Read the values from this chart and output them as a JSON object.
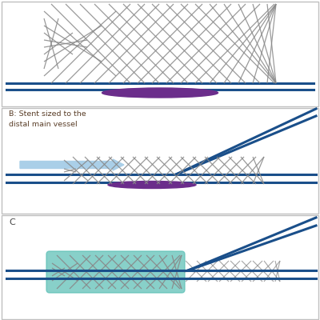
{
  "bg_color": "#ffffff",
  "border_color": "#c0c0c0",
  "vessel_color": "#1a4f8a",
  "mesh_color": "#888888",
  "plaque_color": "#6b2d8b",
  "stent_teal_color": "#5bbfb5",
  "arrow_color": "#aacfe8",
  "label_color": "#5a3e28",
  "panel_label_color": "#444444",
  "vessel_lw": 2.2,
  "mesh_lw": 0.9,
  "label_B": "B: Stent sized to the\ndistal main vessel",
  "label_C": "C"
}
